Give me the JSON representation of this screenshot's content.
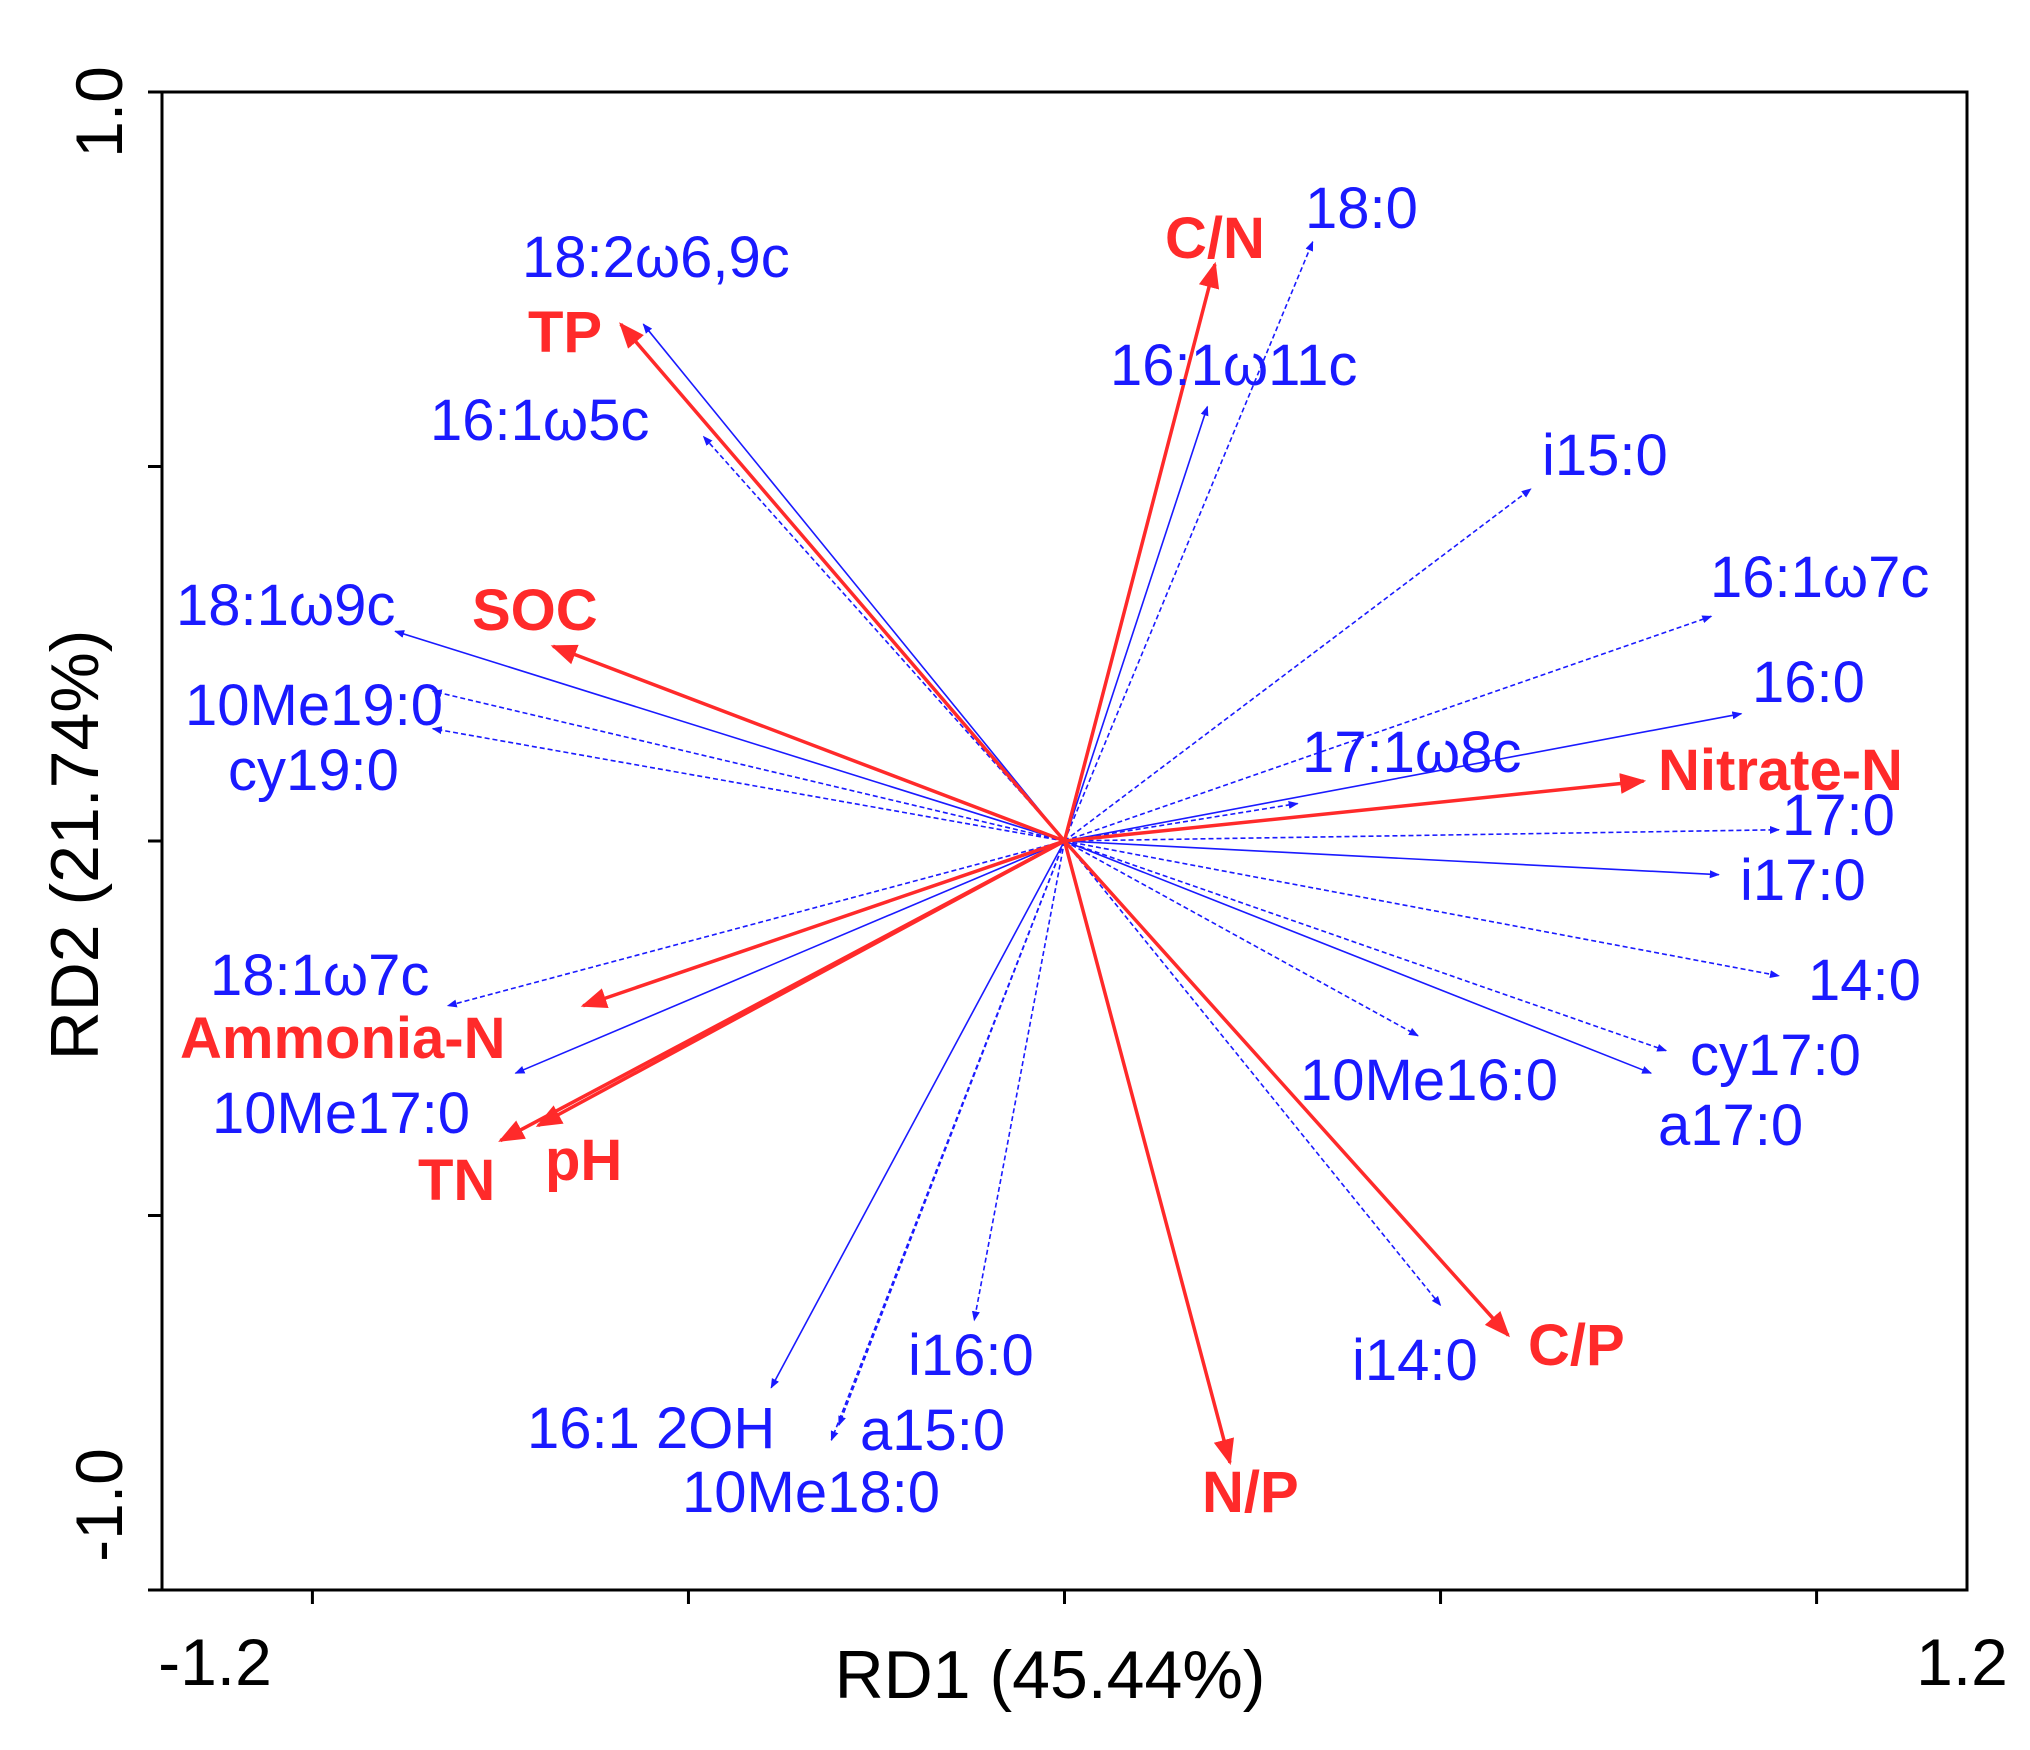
{
  "chart_data": {
    "type": "biplot",
    "xlabel": "RD1 (45.44%)",
    "ylabel": "RD2 (21.74%)",
    "xlim": [
      -1.2,
      1.2
    ],
    "ylim": [
      -1.0,
      1.0
    ],
    "x_tick_labels": [
      "-1.2",
      "1.2"
    ],
    "y_tick_labels": [
      "-1.0",
      "1.0"
    ],
    "colors": {
      "species": "#1a1aff",
      "env": "#ff2a2a",
      "frame": "#000000"
    },
    "species": [
      {
        "name": "18:2ω6,9c",
        "x": -0.56,
        "y": 0.69
      },
      {
        "name": "16:1ω5c",
        "x": -0.48,
        "y": 0.54
      },
      {
        "name": "18:0",
        "x": 0.33,
        "y": 0.8
      },
      {
        "name": "16:1ω11c",
        "x": 0.19,
        "y": 0.58
      },
      {
        "name": "i15:0",
        "x": 0.62,
        "y": 0.47
      },
      {
        "name": "16:1ω7c",
        "x": 0.86,
        "y": 0.3
      },
      {
        "name": "18:1ω9c",
        "x": -0.89,
        "y": 0.28
      },
      {
        "name": "10Me19:0",
        "x": -0.84,
        "y": 0.2
      },
      {
        "name": "cy19:0",
        "x": -0.84,
        "y": 0.15
      },
      {
        "name": "16:0",
        "x": 0.9,
        "y": 0.17
      },
      {
        "name": "17:1ω8c",
        "x": 0.31,
        "y": 0.05
      },
      {
        "name": "17:0",
        "x": 0.95,
        "y": 0.015
      },
      {
        "name": "i17:0",
        "x": 0.87,
        "y": -0.045
      },
      {
        "name": "14:0",
        "x": 0.95,
        "y": -0.18
      },
      {
        "name": "18:1ω7c",
        "x": -0.82,
        "y": -0.22
      },
      {
        "name": "10Me17:0",
        "x": -0.73,
        "y": -0.31
      },
      {
        "name": "10Me16:0",
        "x": 0.47,
        "y": -0.26
      },
      {
        "name": "cy17:0",
        "x": 0.8,
        "y": -0.28
      },
      {
        "name": "a17:0",
        "x": 0.78,
        "y": -0.31
      },
      {
        "name": "i14:0",
        "x": 0.5,
        "y": -0.62
      },
      {
        "name": "i16:0",
        "x": -0.12,
        "y": -0.64
      },
      {
        "name": "16:1 2OH",
        "x": -0.39,
        "y": -0.73
      },
      {
        "name": "a15:0",
        "x": -0.3,
        "y": -0.78
      },
      {
        "name": "10Me18:0",
        "x": -0.31,
        "y": -0.8
      }
    ],
    "environment": [
      {
        "name": "C/N",
        "x": 0.2,
        "y": 0.77
      },
      {
        "name": "TP",
        "x": -0.59,
        "y": 0.69
      },
      {
        "name": "SOC",
        "x": -0.68,
        "y": 0.26
      },
      {
        "name": "Nitrate-N",
        "x": 0.77,
        "y": 0.08
      },
      {
        "name": "Ammonia-N",
        "x": -0.64,
        "y": -0.22
      },
      {
        "name": "pH",
        "x": -0.7,
        "y": -0.38
      },
      {
        "name": "TN",
        "x": -0.75,
        "y": -0.4
      },
      {
        "name": "C/P",
        "x": 0.59,
        "y": -0.66
      },
      {
        "name": "N/P",
        "x": 0.22,
        "y": -0.83
      }
    ]
  }
}
